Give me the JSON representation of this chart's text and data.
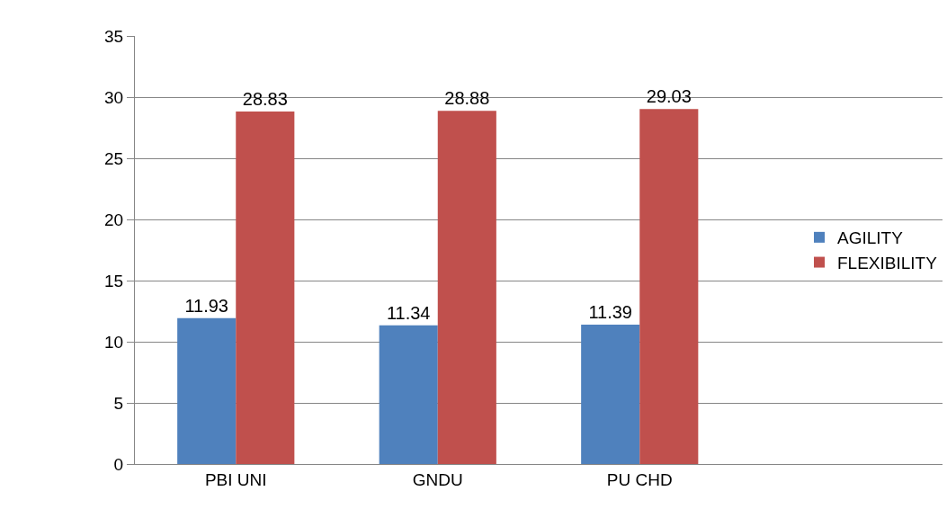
{
  "chart_data": {
    "type": "bar",
    "categories": [
      "PBI UNI",
      "GNDU",
      "PU CHD",
      null
    ],
    "series": [
      {
        "name": "AGILITY",
        "color": "#4f81bd",
        "values": [
          11.93,
          11.34,
          11.39,
          null
        ]
      },
      {
        "name": "FLEXIBILITY",
        "color": "#c0504d",
        "values": [
          28.83,
          28.88,
          29.03,
          null
        ]
      }
    ],
    "ylim": [
      0,
      35
    ],
    "yticks": [
      0,
      5,
      10,
      15,
      20,
      25,
      30,
      35
    ],
    "grid": "y",
    "legend": "right",
    "data_labels": true
  }
}
